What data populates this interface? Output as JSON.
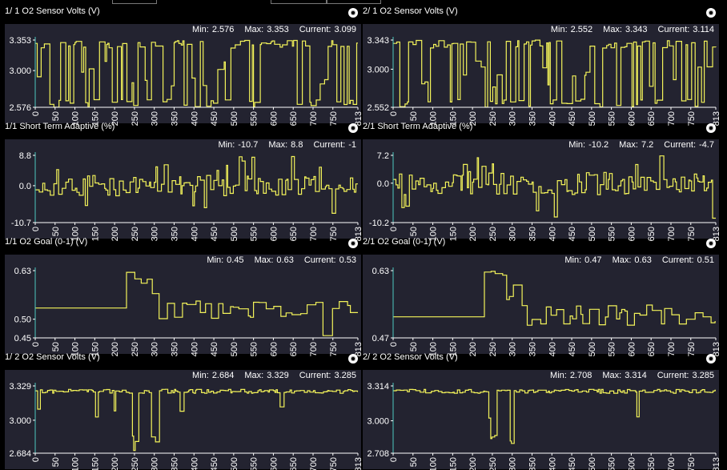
{
  "panels": [
    {
      "title": "1/ 1 O2 Sensor Volts (V)",
      "min": "2.576",
      "max": "3.353",
      "current": "3.099",
      "yticks": [
        "3.353",
        "3.000",
        "2.576"
      ],
      "yvals": [
        3.353,
        3.0,
        2.576
      ],
      "ymin": 2.576,
      "ymax": 3.353,
      "pattern": "square",
      "seed": 3
    },
    {
      "title": "2/ 1 O2 Sensor Volts (V)",
      "min": "2.552",
      "max": "3.343",
      "current": "3.114",
      "yticks": [
        "3.343",
        "3.000",
        "2.552"
      ],
      "yvals": [
        3.343,
        3.0,
        2.552
      ],
      "ymin": 2.552,
      "ymax": 3.343,
      "pattern": "square",
      "seed": 7
    },
    {
      "title": "1/1 Short Term Adaptive (%)",
      "min": "-10.7",
      "max": "8.8",
      "current": "-1",
      "yticks": [
        "8.8",
        "0.0",
        "-10.7"
      ],
      "yvals": [
        8.8,
        0.0,
        -10.7
      ],
      "ymin": -10.7,
      "ymax": 8.8,
      "pattern": "noisy",
      "seed": 11
    },
    {
      "title": "2/1 Short Term Adaptive (%)",
      "min": "-10.2",
      "max": "7.2",
      "current": "-4.7",
      "yticks": [
        "7.2",
        "0.0",
        "-10.2"
      ],
      "yvals": [
        7.2,
        0.0,
        -10.2
      ],
      "ymin": -10.2,
      "ymax": 7.2,
      "pattern": "noisy",
      "seed": 19
    },
    {
      "title": "1/1 O2 Goal (0-1) (V)",
      "min": "0.45",
      "max": "0.63",
      "current": "0.53",
      "yticks": [
        "0.63",
        "0.50",
        "0.45"
      ],
      "yvals": [
        0.63,
        0.5,
        0.45
      ],
      "ymin": 0.45,
      "ymax": 0.63,
      "pattern": "goal1",
      "seed": 23
    },
    {
      "title": "2/1 O2 Goal (0-1) (V)",
      "min": "0.47",
      "max": "0.63",
      "current": "0.51",
      "yticks": [
        "0.63",
        "0.47"
      ],
      "yvals": [
        0.63,
        0.47
      ],
      "ymin": 0.47,
      "ymax": 0.63,
      "pattern": "goal2",
      "seed": 29
    },
    {
      "title": "1/ 2 O2 Sensor Volts (V)",
      "min": "2.684",
      "max": "3.329",
      "current": "3.285",
      "yticks": [
        "3.329",
        "3.000",
        "2.684"
      ],
      "yvals": [
        3.329,
        3.0,
        2.684
      ],
      "ymin": 2.684,
      "ymax": 3.329,
      "pattern": "post1",
      "seed": 31
    },
    {
      "title": "2/ 2 O2 Sensor Volts (V)",
      "min": "2.708",
      "max": "3.314",
      "current": "3.285",
      "yticks": [
        "3.314",
        "3.000",
        "2.708"
      ],
      "yvals": [
        3.314,
        3.0,
        2.708
      ],
      "ymin": 2.708,
      "ymax": 3.314,
      "pattern": "post2",
      "seed": 37
    }
  ],
  "xticks": [
    "0",
    "50",
    "100",
    "150",
    "200",
    "250",
    "300",
    "350",
    "400",
    "450",
    "500",
    "550",
    "600",
    "650",
    "700",
    "750",
    "813"
  ],
  "xvals": [
    0,
    50,
    100,
    150,
    200,
    250,
    300,
    350,
    400,
    450,
    500,
    550,
    600,
    650,
    700,
    750,
    813
  ],
  "xmax": 813,
  "labels": {
    "min": "Min:",
    "max": "Max:",
    "current": "Current:"
  },
  "colors": {
    "line": "#f3f35a",
    "panel": "#232330",
    "axis": "#ffffff",
    "leftaxis": "#4cc9c0"
  }
}
